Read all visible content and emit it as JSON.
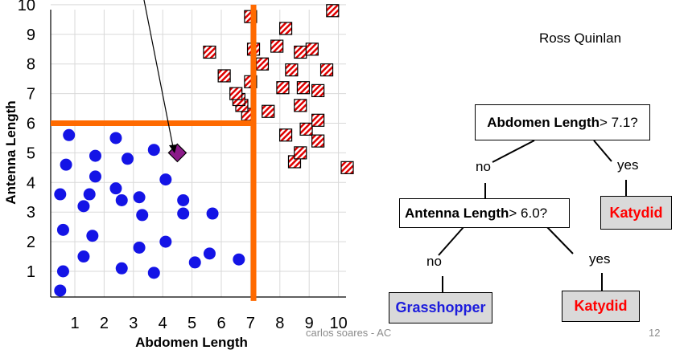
{
  "chart_data": {
    "type": "scatter",
    "xlabel": "Abdomen Length",
    "ylabel": "Antenna  Length",
    "xlim": [
      0.3,
      10.3
    ],
    "ylim": [
      0,
      10.2
    ],
    "x_ticks": [
      "1",
      "2",
      "3",
      "4",
      "5",
      "6",
      "7",
      "8",
      "9",
      "10"
    ],
    "y_ticks": [
      "1",
      "2",
      "3",
      "4",
      "5",
      "6",
      "7",
      "8",
      "9",
      "10"
    ],
    "grid": true,
    "series": [
      {
        "marker": "circle",
        "color": "#1414e6",
        "points": [
          [
            0.8,
            5.6
          ],
          [
            0.7,
            4.6
          ],
          [
            0.5,
            3.6
          ],
          [
            0.6,
            2.4
          ],
          [
            0.6,
            1.0
          ],
          [
            0.5,
            0.35
          ],
          [
            1.3,
            3.2
          ],
          [
            1.5,
            3.6
          ],
          [
            1.7,
            4.9
          ],
          [
            1.7,
            4.2
          ],
          [
            1.6,
            2.2
          ],
          [
            1.3,
            1.5
          ],
          [
            2.4,
            5.5
          ],
          [
            2.8,
            4.8
          ],
          [
            2.4,
            3.8
          ],
          [
            2.6,
            3.4
          ],
          [
            2.6,
            1.1
          ],
          [
            3.2,
            3.5
          ],
          [
            3.3,
            2.9
          ],
          [
            3.2,
            1.8
          ],
          [
            3.7,
            5.1
          ],
          [
            4.1,
            4.1
          ],
          [
            4.1,
            2.0
          ],
          [
            3.7,
            0.95
          ],
          [
            4.7,
            3.4
          ],
          [
            4.7,
            2.95
          ],
          [
            5.7,
            2.95
          ],
          [
            5.1,
            1.3
          ],
          [
            5.6,
            1.6
          ],
          [
            6.6,
            1.4
          ]
        ]
      },
      {
        "marker": "striped-square",
        "color": "#e00000",
        "points": [
          [
            7.0,
            9.6
          ],
          [
            7.1,
            8.5
          ],
          [
            7.4,
            8.0
          ],
          [
            7.0,
            7.4
          ],
          [
            7.6,
            6.4
          ],
          [
            6.9,
            6.3
          ],
          [
            6.7,
            6.6
          ],
          [
            6.6,
            6.8
          ],
          [
            6.1,
            7.6
          ],
          [
            6.5,
            7.0
          ],
          [
            5.6,
            8.4
          ],
          [
            7.9,
            8.6
          ],
          [
            8.2,
            9.2
          ],
          [
            8.4,
            7.8
          ],
          [
            8.1,
            7.2
          ],
          [
            8.7,
            8.4
          ],
          [
            9.1,
            8.5
          ],
          [
            9.6,
            7.8
          ],
          [
            8.7,
            6.6
          ],
          [
            8.8,
            7.2
          ],
          [
            9.3,
            7.1
          ],
          [
            9.8,
            9.8
          ],
          [
            8.2,
            5.6
          ],
          [
            8.5,
            4.7
          ],
          [
            8.7,
            5.0
          ],
          [
            8.9,
            5.8
          ],
          [
            9.3,
            6.1
          ],
          [
            9.3,
            5.4
          ],
          [
            10.3,
            4.5
          ]
        ]
      },
      {
        "marker": "diamond",
        "color": "#8b1a89",
        "points": [
          [
            4.5,
            5.0
          ]
        ]
      }
    ],
    "split_lines": [
      {
        "orientation": "vertical",
        "x": 7.1,
        "y_from": 0,
        "y_to": 10
      },
      {
        "orientation": "horizontal",
        "y": 6.0,
        "x_from": 0,
        "x_to": 7.1
      }
    ]
  },
  "tree": {
    "root": {
      "feature": "Abdomen Length",
      "test": " > 7.1?"
    },
    "node2": {
      "feature": "Antenna  Length",
      "test": " > 6.0?"
    },
    "edges": {
      "root_no": "no",
      "root_yes": "yes",
      "node2_no": "no",
      "node2_yes": "yes"
    },
    "leaves": {
      "katydid_1": "Katydid",
      "grasshopper": "Grasshopper",
      "katydid_2": "Katydid"
    }
  },
  "author": "Ross Quinlan",
  "footer": {
    "credit": "carlos soares - AC",
    "page_number": "12"
  },
  "colors": {
    "split_line": "#ff6a00",
    "katydid_text": "#ff0000",
    "grasshopper_text": "#1c1cdc",
    "leaf_bg": "#d9d9d9"
  }
}
